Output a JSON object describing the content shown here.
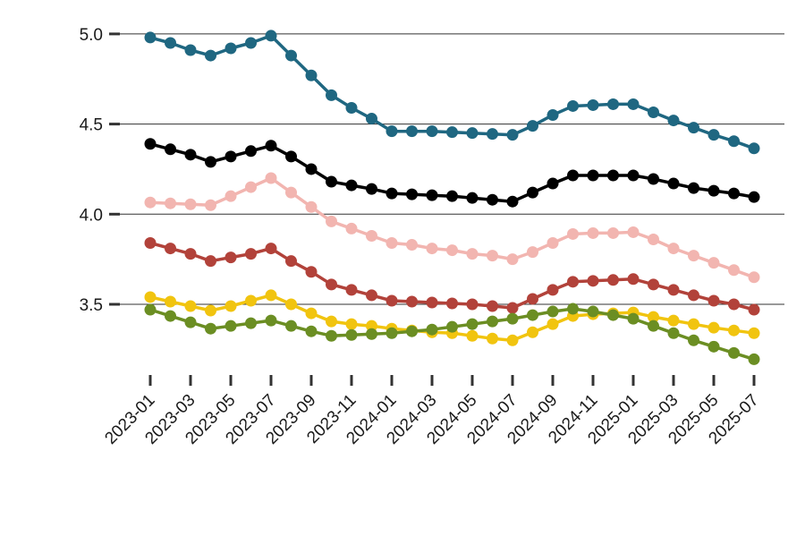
{
  "chart_data": {
    "type": "line",
    "title": "",
    "xlabel": "",
    "ylabel": "",
    "x": [
      "2023-01",
      "2023-02",
      "2023-03",
      "2023-04",
      "2023-05",
      "2023-06",
      "2023-07",
      "2023-08",
      "2023-09",
      "2023-10",
      "2023-11",
      "2023-12",
      "2024-01",
      "2024-02",
      "2024-03",
      "2024-04",
      "2024-05",
      "2024-06",
      "2024-07",
      "2024-08",
      "2024-09",
      "2024-10",
      "2024-11",
      "2024-12",
      "2025-01",
      "2025-02",
      "2025-03",
      "2025-04",
      "2025-05",
      "2025-06",
      "2025-07"
    ],
    "xtick_labels": [
      "2023-01",
      "2023-03",
      "2023-05",
      "2023-07",
      "2023-09",
      "2023-11",
      "2024-01",
      "2024-03",
      "2024-05",
      "2024-07",
      "2024-09",
      "2024-11",
      "2025-01",
      "2025-03",
      "2025-05",
      "2025-07"
    ],
    "yticks": [
      3.5,
      4.0,
      4.5,
      5.0
    ],
    "ytick_labels": [
      "3.5",
      "4.0",
      "4.5",
      "5.0"
    ],
    "ylim": [
      3.05,
      5.05
    ],
    "grid": "horizontal",
    "legend": "none",
    "series": [
      {
        "color": "#1f6781",
        "values": [
          4.98,
          4.95,
          4.91,
          4.88,
          4.92,
          4.95,
          4.99,
          4.88,
          4.77,
          4.66,
          4.59,
          4.53,
          4.46,
          4.46,
          4.46,
          4.455,
          4.45,
          4.445,
          4.44,
          4.49,
          4.55,
          4.6,
          4.605,
          4.61,
          4.61,
          4.565,
          4.52,
          4.48,
          4.44,
          4.405,
          4.365
        ]
      },
      {
        "color": "#000000",
        "values": [
          4.39,
          4.36,
          4.33,
          4.29,
          4.32,
          4.35,
          4.38,
          4.32,
          4.25,
          4.18,
          4.16,
          4.14,
          4.115,
          4.11,
          4.105,
          4.1,
          4.09,
          4.08,
          4.07,
          4.12,
          4.17,
          4.215,
          4.215,
          4.215,
          4.215,
          4.195,
          4.17,
          4.145,
          4.13,
          4.115,
          4.095
        ]
      },
      {
        "color": "#f2b5b0",
        "values": [
          4.065,
          4.06,
          4.055,
          4.05,
          4.1,
          4.15,
          4.2,
          4.12,
          4.04,
          3.96,
          3.92,
          3.88,
          3.84,
          3.83,
          3.81,
          3.8,
          3.78,
          3.77,
          3.75,
          3.79,
          3.84,
          3.89,
          3.895,
          3.895,
          3.9,
          3.86,
          3.81,
          3.77,
          3.73,
          3.69,
          3.65
        ]
      },
      {
        "color": "#b2423a",
        "values": [
          3.84,
          3.81,
          3.78,
          3.74,
          3.76,
          3.78,
          3.81,
          3.74,
          3.68,
          3.61,
          3.58,
          3.55,
          3.52,
          3.515,
          3.51,
          3.505,
          3.5,
          3.49,
          3.48,
          3.53,
          3.58,
          3.625,
          3.63,
          3.635,
          3.64,
          3.61,
          3.58,
          3.55,
          3.52,
          3.5,
          3.47
        ]
      },
      {
        "color": "#f1c40f",
        "values": [
          3.54,
          3.515,
          3.49,
          3.465,
          3.49,
          3.52,
          3.55,
          3.5,
          3.45,
          3.405,
          3.39,
          3.38,
          3.365,
          3.355,
          3.345,
          3.34,
          3.325,
          3.31,
          3.3,
          3.345,
          3.39,
          3.435,
          3.445,
          3.45,
          3.455,
          3.43,
          3.41,
          3.39,
          3.37,
          3.355,
          3.34
        ]
      },
      {
        "color": "#6b8e23",
        "values": [
          3.47,
          3.435,
          3.4,
          3.365,
          3.38,
          3.395,
          3.41,
          3.38,
          3.35,
          3.325,
          3.33,
          3.335,
          3.34,
          3.35,
          3.36,
          3.375,
          3.39,
          3.405,
          3.42,
          3.44,
          3.46,
          3.475,
          3.46,
          3.44,
          3.42,
          3.38,
          3.34,
          3.3,
          3.265,
          3.23,
          3.195
        ]
      }
    ]
  }
}
